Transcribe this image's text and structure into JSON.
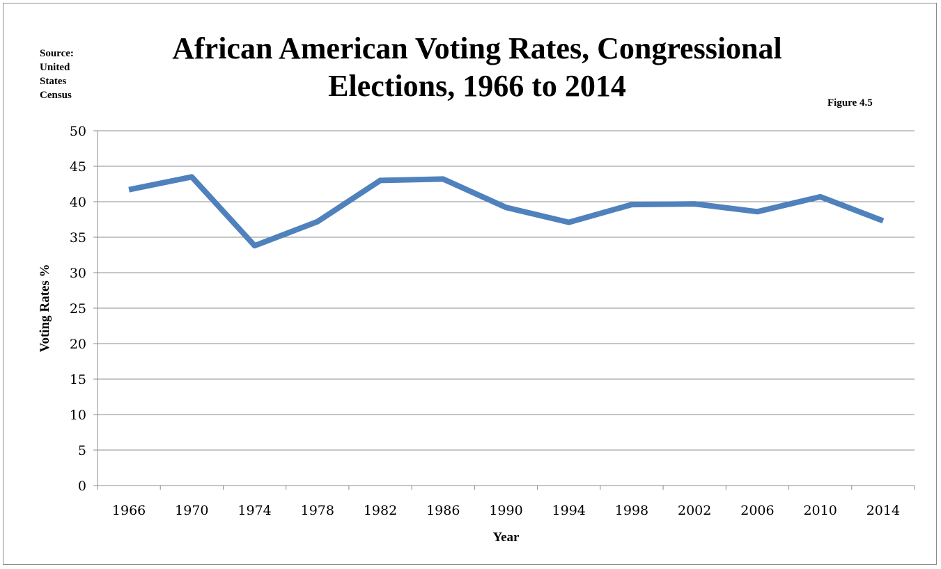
{
  "source_note": "Source: United States Census",
  "figure_label": "Figure 4.5",
  "chart_data": {
    "type": "line",
    "title": "African American Voting Rates, Congressional Elections, 1966 to 2014",
    "xlabel": "Year",
    "ylabel": "Voting Rates %",
    "ylim": [
      0,
      50
    ],
    "y_ticks": [
      0,
      5,
      10,
      15,
      20,
      25,
      30,
      35,
      40,
      45,
      50
    ],
    "grid": true,
    "legend": "none",
    "line_color": "#4f81bd",
    "categories": [
      "1966",
      "1970",
      "1974",
      "1978",
      "1982",
      "1986",
      "1990",
      "1994",
      "1998",
      "2002",
      "2006",
      "2010",
      "2014"
    ],
    "series": [
      {
        "values": [
          41.7,
          43.5,
          33.8,
          37.2,
          43.0,
          43.2,
          39.2,
          37.1,
          39.6,
          39.7,
          38.6,
          40.7,
          37.3
        ]
      }
    ]
  }
}
